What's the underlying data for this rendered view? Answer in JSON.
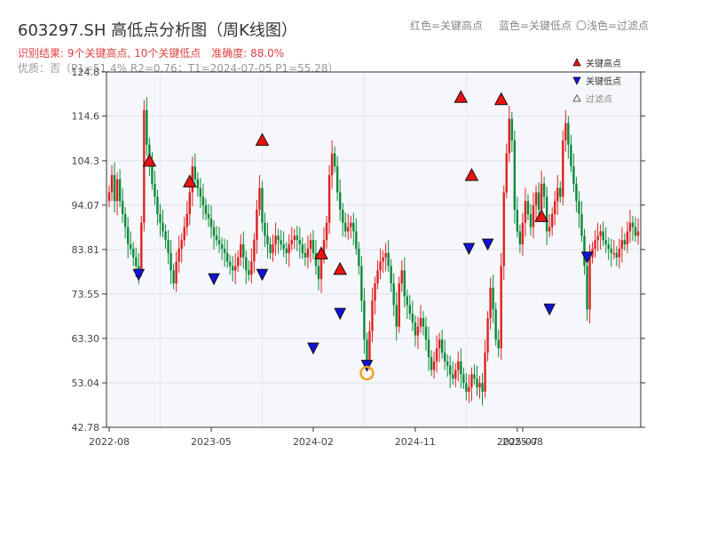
{
  "title": "603297.SH 高低点分析图（周K线图）",
  "header_legend": {
    "red": "红色=关键高点",
    "blue": "蓝色=关键低点",
    "light": "〇浅色=过滤点"
  },
  "subtitle": {
    "result": "识别结果: 9个关键高点, 10个关键低点",
    "accuracy": "准确度: 88.0%"
  },
  "quality": "优质：否（P1=51.4%  R2=0.76；T1=2024-07-05 P1=55.28）",
  "colors": {
    "up": "#e02020",
    "down": "#0a8a3a",
    "high_marker": "#ee1111",
    "low_marker": "#1111dd",
    "highlight": "#f0a020"
  },
  "chart_data": {
    "type": "candlestick",
    "y_ticks": [
      "42.78",
      "53.04",
      "63.30",
      "73.55",
      "83.81",
      "94.07",
      "104.3",
      "114.6",
      "124.8"
    ],
    "ylim": [
      42.78,
      124.8
    ],
    "x_ticks": [
      {
        "label": "2022-08",
        "i": 0
      },
      {
        "label": "2023-05",
        "i": 38
      },
      {
        "label": "2024-02",
        "i": 76
      },
      {
        "label": "2024-11",
        "i": 114
      },
      {
        "label": "2025-07",
        "i": 152
      },
      {
        "label": "2025-08",
        "i": 154
      }
    ],
    "legend": {
      "high": "关键高点",
      "low": "关键低点",
      "filtered": "过滤点"
    },
    "closes": [
      97,
      101,
      95,
      100,
      95,
      92,
      89,
      85,
      84,
      82,
      80,
      79,
      90,
      116,
      108,
      104,
      99,
      96,
      92,
      90,
      88,
      86,
      83,
      79,
      76,
      81,
      84,
      86,
      89,
      92,
      97,
      103,
      100,
      98,
      96,
      94,
      92,
      91,
      89,
      87,
      86,
      85,
      84,
      83,
      81,
      80,
      79,
      80,
      82,
      85,
      82,
      79,
      78,
      81,
      86,
      93,
      98,
      90,
      87,
      85,
      83,
      85,
      87,
      86,
      85,
      84,
      83,
      85,
      86,
      87,
      86,
      85,
      83,
      82,
      84,
      86,
      83,
      80,
      77,
      82,
      86,
      90,
      101,
      106,
      103,
      97,
      93,
      90,
      88,
      89,
      90,
      88,
      84,
      80,
      72,
      63,
      58,
      65,
      72,
      76,
      79,
      81,
      82,
      83,
      80,
      76,
      71,
      66,
      76,
      79,
      73,
      71,
      69,
      67,
      64,
      66,
      68,
      66,
      63,
      59,
      56,
      58,
      61,
      63,
      60,
      58,
      57,
      55,
      54,
      56,
      58,
      55,
      53,
      51,
      52,
      55,
      54,
      52,
      53,
      51,
      60,
      68,
      75,
      70,
      63,
      61,
      80,
      97,
      106,
      114,
      109,
      93,
      88,
      85,
      90,
      95,
      92,
      89,
      94,
      97,
      93,
      99,
      96,
      88,
      89,
      92,
      95,
      98,
      96,
      109,
      113,
      108,
      103,
      99,
      95,
      92,
      87,
      80,
      70,
      82,
      84,
      86,
      87,
      88,
      86,
      85,
      84,
      83,
      83,
      82,
      84,
      86,
      85,
      88,
      90,
      89,
      87,
      88
    ],
    "key_highs": [
      {
        "i": 15,
        "price": 104.3
      },
      {
        "i": 30,
        "price": 99.5
      },
      {
        "i": 57,
        "price": 109.1
      },
      {
        "i": 79,
        "price": 82.9
      },
      {
        "i": 86,
        "price": 79.3
      },
      {
        "i": 131,
        "price": 119.0
      },
      {
        "i": 135,
        "price": 101.0
      },
      {
        "i": 146,
        "price": 118.5
      },
      {
        "i": 161,
        "price": 91.5
      }
    ],
    "key_lows": [
      {
        "i": 11,
        "price": 78.0
      },
      {
        "i": 39,
        "price": 77.0
      },
      {
        "i": 57,
        "price": 78.0
      },
      {
        "i": 76,
        "price": 61.0
      },
      {
        "i": 86,
        "price": 69.0
      },
      {
        "i": 96,
        "price": 57.0
      },
      {
        "i": 134,
        "price": 84.0
      },
      {
        "i": 141,
        "price": 85.0
      },
      {
        "i": 164,
        "price": 70.0
      },
      {
        "i": 178,
        "price": 82.0
      }
    ]
  }
}
